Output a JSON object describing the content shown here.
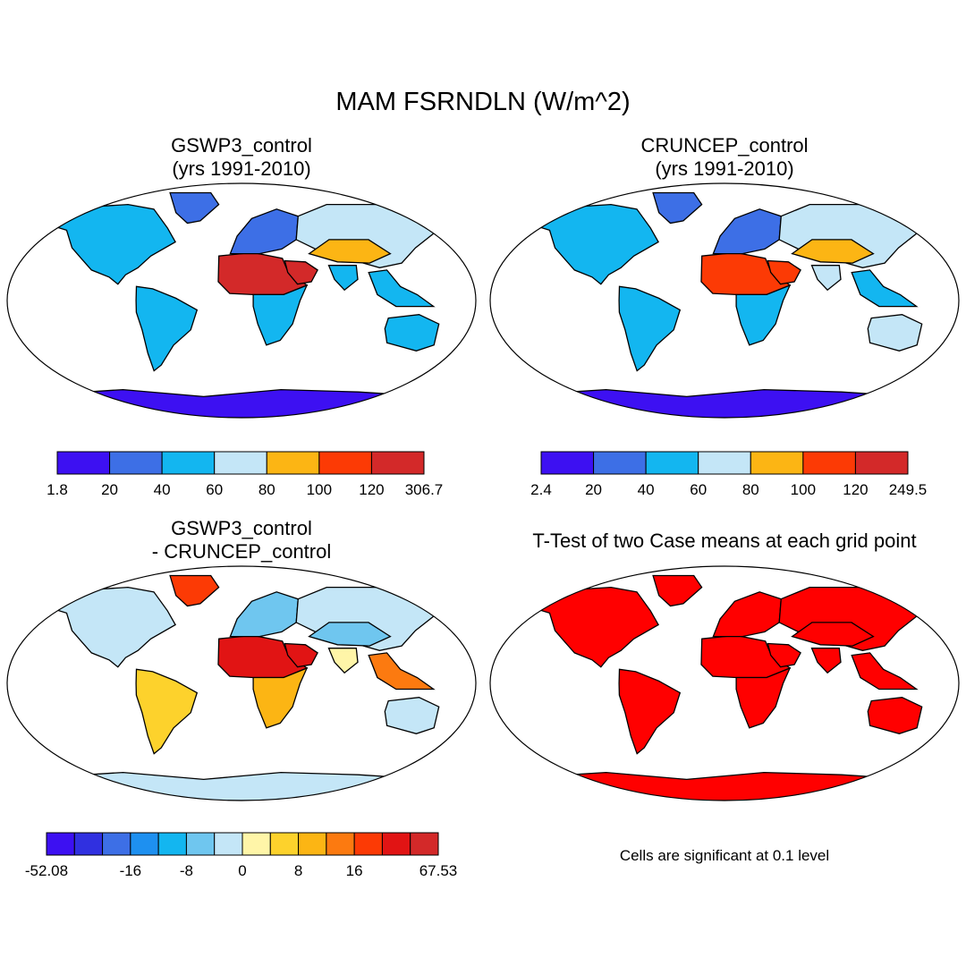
{
  "title": "MAM FSRNDLN (W/m^2)",
  "panels": [
    {
      "id": "p1",
      "title_line1": "GSWP3_control",
      "title_line2": "(yrs 1991-2010)",
      "cmap": [
        "#3d10f2",
        "#3d6fe6",
        "#13b6f0",
        "#c4e6f7",
        "#fcb514",
        "#fc3a05",
        "#d32929"
      ],
      "land": {
        "na": 2,
        "greenland": 1,
        "sa": 2,
        "africa_north": 6,
        "africa_south": 2,
        "europe": 1,
        "asia": 3,
        "central_asia": 4,
        "arabia": 6,
        "india": 2,
        "se_asia": 2,
        "australia": 2,
        "antarctica": 0
      }
    },
    {
      "id": "p2",
      "title_line1": "CRUNCEP_control",
      "title_line2": "(yrs 1991-2010)",
      "cmap": [
        "#3d10f2",
        "#3d6fe6",
        "#13b6f0",
        "#c4e6f7",
        "#fcb514",
        "#fc3a05",
        "#d32929"
      ],
      "land": {
        "na": 2,
        "greenland": 1,
        "sa": 2,
        "africa_north": 5,
        "africa_south": 2,
        "europe": 1,
        "asia": 3,
        "central_asia": 4,
        "arabia": 5,
        "india": 3,
        "se_asia": 2,
        "australia": 3,
        "antarctica": 0
      }
    },
    {
      "id": "p3",
      "title_line1": "GSWP3_control",
      "title_line2": "- CRUNCEP_control",
      "cmap": [
        "#3d10f2",
        "#3030e0",
        "#3d6fe6",
        "#1e90f0",
        "#13b6f0",
        "#6fc6ef",
        "#c4e6f7",
        "#fff5a8",
        "#fdd22c",
        "#fcb514",
        "#fc7a10",
        "#fc3a05",
        "#e11414",
        "#d32929"
      ],
      "land": {
        "na": 6,
        "greenland": 11,
        "sa": 8,
        "africa_north": 12,
        "africa_south": 9,
        "europe": 5,
        "asia": 6,
        "central_asia": 5,
        "arabia": 12,
        "india": 7,
        "se_asia": 10,
        "australia": 6,
        "antarctica": 6
      }
    },
    {
      "id": "p4",
      "title_line1": "T-Test of two Case means at each grid point",
      "title_line2": "",
      "cmap": [
        "#ff0000"
      ],
      "land": {
        "na": 0,
        "greenland": 0,
        "sa": 0,
        "africa_north": 0,
        "africa_south": 0,
        "europe": 0,
        "asia": 0,
        "central_asia": 0,
        "arabia": 0,
        "india": 0,
        "se_asia": 0,
        "australia": 0,
        "antarctica": 0
      }
    }
  ],
  "colorbars": [
    {
      "id": "cb1",
      "labels": [
        "1.8",
        "20",
        "40",
        "60",
        "80",
        "100",
        "120",
        "306.7"
      ],
      "colors": [
        "#3d10f2",
        "#3d6fe6",
        "#13b6f0",
        "#c4e6f7",
        "#fcb514",
        "#fc3a05",
        "#d32929"
      ]
    },
    {
      "id": "cb2",
      "labels": [
        "2.4",
        "20",
        "40",
        "60",
        "80",
        "100",
        "120",
        "249.5"
      ],
      "colors": [
        "#3d10f2",
        "#3d6fe6",
        "#13b6f0",
        "#c4e6f7",
        "#fcb514",
        "#fc3a05",
        "#d32929"
      ]
    },
    {
      "id": "cb3",
      "labels": [
        "-52.08",
        "-16",
        "-8",
        "0",
        "8",
        "16",
        "67.53"
      ],
      "label_boxes": [
        0,
        3,
        5,
        7,
        9,
        11,
        14
      ],
      "colors": [
        "#3d10f2",
        "#3030e0",
        "#3d6fe6",
        "#1e90f0",
        "#13b6f0",
        "#6fc6ef",
        "#c4e6f7",
        "#fff5a8",
        "#fdd22c",
        "#fcb514",
        "#fc7a10",
        "#fc3a05",
        "#e11414",
        "#d32929"
      ]
    }
  ],
  "note": "Cells are significant at 0.1 level"
}
